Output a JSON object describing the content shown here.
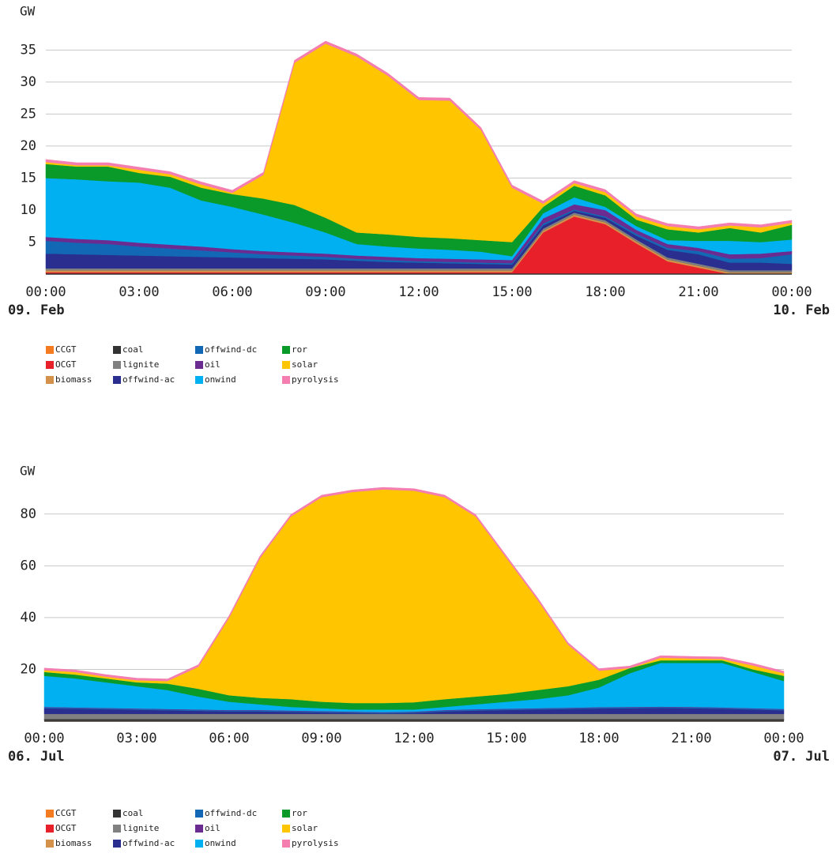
{
  "chart_data": [
    {
      "type": "stacked-area",
      "ylabel": "GW",
      "x": [
        0,
        1,
        2,
        3,
        4,
        5,
        6,
        7,
        8,
        9,
        10,
        11,
        12,
        13,
        14,
        15,
        16,
        17,
        18,
        19,
        20,
        21,
        22,
        23,
        24
      ],
      "xlim": [
        0,
        24
      ],
      "xticks": [
        {
          "value": 0,
          "label": "00:00"
        },
        {
          "value": 3,
          "label": "03:00"
        },
        {
          "value": 6,
          "label": "06:00"
        },
        {
          "value": 9,
          "label": "09:00"
        },
        {
          "value": 12,
          "label": "12:00"
        },
        {
          "value": 15,
          "label": "15:00"
        },
        {
          "value": 18,
          "label": "18:00"
        },
        {
          "value": 21,
          "label": "21:00"
        },
        {
          "value": 24,
          "label": "00:00"
        }
      ],
      "date_labels": [
        "09. Feb",
        "10. Feb"
      ],
      "ylim": [
        0,
        38
      ],
      "yticks": [
        5,
        10,
        15,
        20,
        25,
        30,
        35
      ],
      "grid": true,
      "series": [
        {
          "name": "CCGT",
          "color": "#f47b20",
          "values": [
            0,
            0,
            0,
            0,
            0,
            0,
            0,
            0,
            0,
            0,
            0,
            0,
            0,
            0,
            0,
            0,
            0,
            0,
            0,
            0,
            0,
            0,
            0,
            0,
            0
          ]
        },
        {
          "name": "OCGT",
          "color": "#e8202a",
          "values": [
            0.3,
            0.3,
            0.3,
            0.3,
            0.3,
            0.3,
            0.3,
            0.3,
            0.3,
            0.3,
            0.3,
            0.3,
            0.3,
            0.3,
            0.3,
            0.3,
            6.5,
            9.0,
            7.8,
            4.8,
            2.0,
            1.0,
            0,
            0,
            0
          ]
        },
        {
          "name": "biomass",
          "color": "#d4914a",
          "values": [
            0.3,
            0.3,
            0.3,
            0.3,
            0.3,
            0.3,
            0.3,
            0.3,
            0.3,
            0.3,
            0.3,
            0.3,
            0.3,
            0.3,
            0.3,
            0.3,
            0.3,
            0.3,
            0.3,
            0.3,
            0.3,
            0.3,
            0.3,
            0.3,
            0.3
          ]
        },
        {
          "name": "coal",
          "color": "#333333",
          "values": [
            0,
            0,
            0,
            0,
            0,
            0,
            0,
            0,
            0,
            0,
            0,
            0,
            0,
            0,
            0,
            0,
            0,
            0,
            0,
            0,
            0,
            0,
            0,
            0,
            0
          ]
        },
        {
          "name": "lignite",
          "color": "#808080",
          "values": [
            0.3,
            0.3,
            0.3,
            0.3,
            0.3,
            0.3,
            0.3,
            0.3,
            0.3,
            0.3,
            0.3,
            0.3,
            0.3,
            0.3,
            0.3,
            0.3,
            0.3,
            0.3,
            0.3,
            0.3,
            0.3,
            0.3,
            0.3,
            0.3,
            0.3
          ]
        },
        {
          "name": "offwind-ac",
          "color": "#2a2f8f",
          "values": [
            2.3,
            2.2,
            2.1,
            2.0,
            1.9,
            1.8,
            1.7,
            1.6,
            1.5,
            1.4,
            1.2,
            1.0,
            0.9,
            0.8,
            0.7,
            0.6,
            0.5,
            0.3,
            0.4,
            0.6,
            1.2,
            1.5,
            1.2,
            1.2,
            1.0
          ]
        },
        {
          "name": "offwind-dc",
          "color": "#1268b5",
          "values": [
            2.0,
            1.8,
            1.7,
            1.4,
            1.2,
            1.0,
            0.8,
            0.6,
            0.5,
            0.4,
            0.3,
            0.3,
            0.2,
            0.2,
            0.2,
            0.2,
            0.3,
            0.2,
            0.2,
            0.3,
            0.3,
            0.5,
            0.6,
            0.7,
            1.5
          ]
        },
        {
          "name": "oil",
          "color": "#6a2c91",
          "values": [
            0.6,
            0.6,
            0.6,
            0.6,
            0.6,
            0.6,
            0.5,
            0.5,
            0.5,
            0.5,
            0.5,
            0.5,
            0.5,
            0.5,
            0.5,
            0.5,
            0.8,
            0.8,
            1.0,
            0.6,
            0.6,
            0.5,
            0.7,
            0.7,
            0.5
          ]
        },
        {
          "name": "onwind",
          "color": "#00b0f0",
          "values": [
            9.2,
            9.3,
            9.2,
            9.4,
            8.9,
            7.2,
            6.6,
            5.7,
            4.6,
            3.3,
            1.8,
            1.6,
            1.5,
            1.4,
            1.2,
            0.6,
            0.8,
            1.1,
            0.5,
            0.6,
            0.6,
            1.1,
            2.1,
            1.8,
            1.8
          ]
        },
        {
          "name": "ror",
          "color": "#0a9a2a",
          "values": [
            2.2,
            2.0,
            2.3,
            1.5,
            1.7,
            2.0,
            2.0,
            2.5,
            2.8,
            2.3,
            1.8,
            1.9,
            1.8,
            1.8,
            1.8,
            2.2,
            1.0,
            1.8,
            1.8,
            1.0,
            1.7,
            1.3,
            2.0,
            1.5,
            2.3
          ]
        },
        {
          "name": "solar",
          "color": "#ffc600",
          "values": [
            0.3,
            0.2,
            0.2,
            0.5,
            0.4,
            0.5,
            0.2,
            3.7,
            22.2,
            27.2,
            27.5,
            24.8,
            21.4,
            21.5,
            17.2,
            8.5,
            0.5,
            0.4,
            0.5,
            0.5,
            0.5,
            0.5,
            0.4,
            0.8,
            0.3
          ]
        },
        {
          "name": "pyrolysis",
          "color": "#f47eb0",
          "values": [
            0.4,
            0.4,
            0.4,
            0.4,
            0.4,
            0.4,
            0.4,
            0.4,
            0.4,
            0.4,
            0.4,
            0.4,
            0.4,
            0.4,
            0.4,
            0.4,
            0.4,
            0.4,
            0.4,
            0.4,
            0.4,
            0.4,
            0.4,
            0.4,
            0.4
          ]
        }
      ]
    },
    {
      "type": "stacked-area",
      "ylabel": "GW",
      "x": [
        0,
        1,
        2,
        3,
        4,
        5,
        6,
        7,
        8,
        9,
        10,
        11,
        12,
        13,
        14,
        15,
        16,
        17,
        18,
        19,
        20,
        21,
        22,
        23,
        24
      ],
      "xlim": [
        0,
        24
      ],
      "xticks": [
        {
          "value": 0,
          "label": "00:00"
        },
        {
          "value": 3,
          "label": "03:00"
        },
        {
          "value": 6,
          "label": "06:00"
        },
        {
          "value": 9,
          "label": "09:00"
        },
        {
          "value": 12,
          "label": "12:00"
        },
        {
          "value": 15,
          "label": "15:00"
        },
        {
          "value": 18,
          "label": "18:00"
        },
        {
          "value": 21,
          "label": "21:00"
        },
        {
          "value": 24,
          "label": "00:00"
        }
      ],
      "date_labels": [
        "06. Jul",
        "07. Jul"
      ],
      "ylim": [
        0,
        90
      ],
      "yticks": [
        20,
        40,
        60,
        80
      ],
      "grid": true,
      "series": [
        {
          "name": "CCGT",
          "color": "#f47b20",
          "values": [
            0,
            0,
            0,
            0,
            0,
            0,
            0,
            0,
            0,
            0,
            0,
            0,
            0,
            0,
            0,
            0,
            0,
            0,
            0,
            0,
            0,
            0,
            0,
            0,
            0
          ]
        },
        {
          "name": "OCGT",
          "color": "#e8202a",
          "values": [
            0,
            0,
            0,
            0,
            0,
            0,
            0,
            0,
            0,
            0,
            0,
            0,
            0,
            0,
            0,
            0,
            0,
            0,
            0,
            0,
            0,
            0,
            0,
            0,
            0
          ]
        },
        {
          "name": "biomass",
          "color": "#d4914a",
          "values": [
            0.3,
            0.3,
            0.3,
            0.3,
            0.3,
            0.3,
            0.3,
            0.3,
            0.3,
            0.3,
            0.3,
            0.3,
            0.3,
            0.3,
            0.3,
            0.3,
            0.3,
            0.3,
            0.3,
            0.3,
            0.3,
            0.3,
            0.3,
            0.3,
            0.3
          ]
        },
        {
          "name": "coal",
          "color": "#333333",
          "values": [
            0.5,
            0.5,
            0.5,
            0.5,
            0.5,
            0.5,
            0.5,
            0.5,
            0.5,
            0.5,
            0.5,
            0.5,
            0.5,
            0.5,
            0.5,
            0.5,
            0.5,
            0.5,
            0.5,
            0.5,
            0.5,
            0.5,
            0.5,
            0.5,
            0.5
          ]
        },
        {
          "name": "lignite",
          "color": "#808080",
          "values": [
            2.0,
            2.0,
            2.0,
            2.0,
            2.0,
            2.0,
            2.0,
            2.0,
            2.0,
            2.0,
            2.0,
            2.0,
            2.0,
            2.0,
            2.0,
            2.0,
            2.0,
            2.0,
            2.0,
            2.0,
            2.0,
            2.0,
            2.0,
            2.0,
            2.0
          ]
        },
        {
          "name": "offwind-ac",
          "color": "#2a2f8f",
          "values": [
            2.2,
            2.0,
            1.8,
            1.6,
            1.4,
            1.2,
            1.0,
            1.0,
            0.8,
            0.6,
            0.4,
            0.2,
            0.4,
            1.0,
            1.3,
            1.5,
            1.7,
            1.9,
            2.1,
            2.2,
            2.3,
            2.2,
            2.0,
            1.7,
            1.4
          ]
        },
        {
          "name": "offwind-dc",
          "color": "#1268b5",
          "values": [
            0.3,
            0.3,
            0.3,
            0.3,
            0.3,
            0.3,
            0.3,
            0.3,
            0.3,
            0.3,
            0.3,
            0.3,
            0.3,
            0.3,
            0.3,
            0.3,
            0.3,
            0.3,
            0.3,
            0.3,
            0.3,
            0.3,
            0.3,
            0.3,
            0.3
          ]
        },
        {
          "name": "oil",
          "color": "#6a2c91",
          "values": [
            0.2,
            0.2,
            0.2,
            0.2,
            0.2,
            0.2,
            0.2,
            0.2,
            0.2,
            0.2,
            0.2,
            0.2,
            0.2,
            0.2,
            0.2,
            0.2,
            0.2,
            0.2,
            0.2,
            0.2,
            0.2,
            0.2,
            0.2,
            0.2,
            0.2
          ]
        },
        {
          "name": "onwind",
          "color": "#00b0f0",
          "values": [
            12.0,
            11.2,
            9.9,
            8.6,
            7.3,
            5.0,
            3.2,
            2.2,
            1.4,
            1.1,
            0.8,
            1.0,
            0.8,
            1.2,
            1.9,
            2.7,
            3.5,
            4.8,
            7.6,
            13.0,
            16.9,
            17.0,
            17.2,
            14.0,
            10.8
          ]
        },
        {
          "name": "ror",
          "color": "#0a9a2a",
          "values": [
            1.5,
            1.5,
            1.5,
            1.5,
            2.5,
            3.0,
            2.5,
            2.5,
            3.0,
            2.5,
            2.5,
            2.5,
            2.8,
            3.0,
            3.0,
            3.0,
            3.5,
            3.5,
            3.0,
            2.0,
            1.0,
            1.0,
            1.0,
            1.0,
            2.0
          ]
        },
        {
          "name": "solar",
          "color": "#ffc600",
          "values": [
            0.7,
            1.0,
            0.7,
            0.8,
            1.0,
            8.5,
            30,
            54,
            70.5,
            79,
            81.5,
            82.5,
            81.7,
            78,
            69.5,
            52.5,
            35,
            16,
            3.5,
            0,
            1.0,
            0.7,
            0.5,
            1.5,
            1.0
          ]
        },
        {
          "name": "pyrolysis",
          "color": "#f47eb0",
          "values": [
            0.8,
            0.8,
            0.8,
            0.8,
            0.8,
            0.8,
            0.8,
            0.8,
            0.8,
            0.8,
            0.8,
            0.8,
            0.8,
            0.8,
            0.8,
            0.8,
            0.8,
            0.8,
            0.8,
            0.8,
            0.8,
            0.8,
            0.8,
            0.8,
            0.8
          ]
        }
      ]
    }
  ]
}
